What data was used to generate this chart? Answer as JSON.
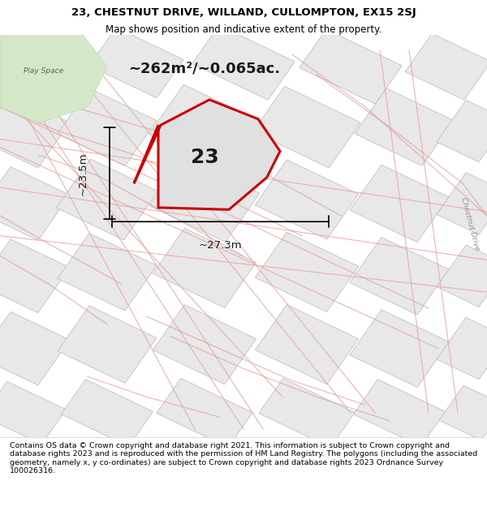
{
  "title": "23, CHESTNUT DRIVE, WILLAND, CULLOMPTON, EX15 2SJ",
  "subtitle": "Map shows position and indicative extent of the property.",
  "area_label": "~262m²/~0.065ac.",
  "width_label": "~27.3m",
  "height_label": "~23.5m",
  "property_number": "23",
  "footer": "Contains OS data © Crown copyright and database right 2021. This information is subject to Crown copyright and database rights 2023 and is reproduced with the permission of HM Land Registry. The polygons (including the associated geometry, namely x, y co-ordinates) are subject to Crown copyright and database rights 2023 Ordnance Survey 100026316.",
  "bg_color": "#ffffff",
  "map_bg": "#f0f0f0",
  "property_fill": "#e0e0e0",
  "property_edge": "#cc0000",
  "title_color": "#000000",
  "footer_color": "#000000",
  "play_space_label": "Play Space",
  "chestnut_drive_label": "Chestnut Drive"
}
